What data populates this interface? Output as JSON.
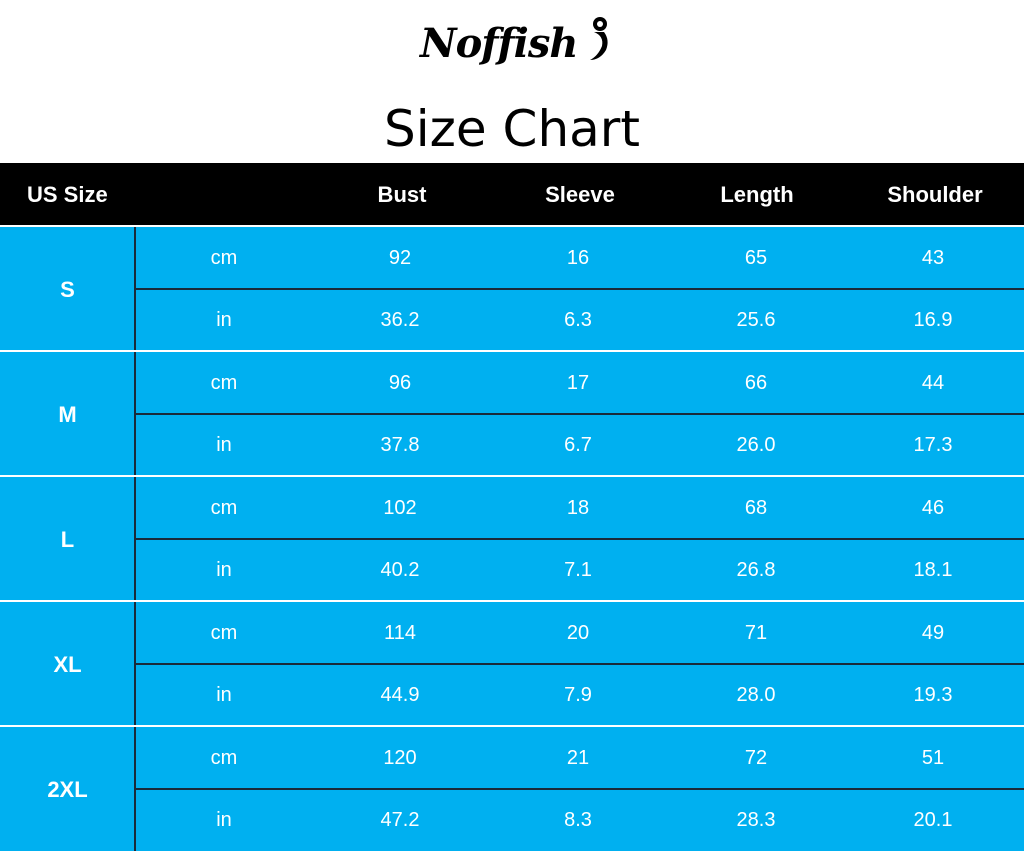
{
  "brand": "Noffish",
  "title": "Size Chart",
  "colors": {
    "header_bg": "#000000",
    "cell_bg": "#00b0f0",
    "text": "#ffffff"
  },
  "headers": [
    "US Size",
    "Bust",
    "Sleeve",
    "Length",
    "Shoulder"
  ],
  "sizes": [
    {
      "size": "S",
      "rows": [
        {
          "unit": "cm",
          "values": [
            "92",
            "16",
            "65",
            "43"
          ]
        },
        {
          "unit": "in",
          "values": [
            "36.2",
            "6.3",
            "25.6",
            "16.9"
          ]
        }
      ]
    },
    {
      "size": "M",
      "rows": [
        {
          "unit": "cm",
          "values": [
            "96",
            "17",
            "66",
            "44"
          ]
        },
        {
          "unit": "in",
          "values": [
            "37.8",
            "6.7",
            "26.0",
            "17.3"
          ]
        }
      ]
    },
    {
      "size": "L",
      "rows": [
        {
          "unit": "cm",
          "values": [
            "102",
            "18",
            "68",
            "46"
          ]
        },
        {
          "unit": "in",
          "values": [
            "40.2",
            "7.1",
            "26.8",
            "18.1"
          ]
        }
      ]
    },
    {
      "size": "XL",
      "rows": [
        {
          "unit": "cm",
          "values": [
            "114",
            "20",
            "71",
            "49"
          ]
        },
        {
          "unit": "in",
          "values": [
            "44.9",
            "7.9",
            "28.0",
            "19.3"
          ]
        }
      ]
    },
    {
      "size": "2XL",
      "rows": [
        {
          "unit": "cm",
          "values": [
            "120",
            "21",
            "72",
            "51"
          ]
        },
        {
          "unit": "in",
          "values": [
            "47.2",
            "8.3",
            "28.3",
            "20.1"
          ]
        }
      ]
    }
  ]
}
